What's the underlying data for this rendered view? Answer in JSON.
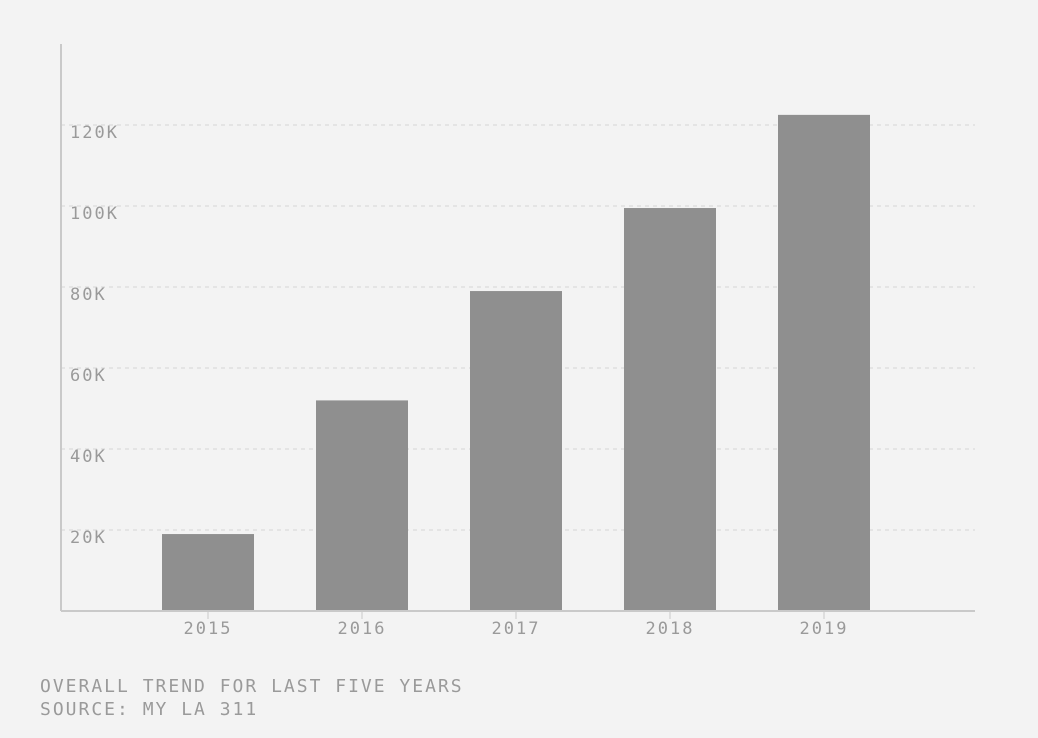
{
  "chart_data": {
    "type": "bar",
    "categories": [
      "2015",
      "2016",
      "2017",
      "2018",
      "2019"
    ],
    "values": [
      19000,
      52000,
      79000,
      99500,
      122500
    ],
    "ylim": [
      0,
      140000
    ],
    "yticks": [
      20000,
      40000,
      60000,
      80000,
      100000,
      120000
    ],
    "ytick_labels": [
      "20K",
      "40K",
      "60K",
      "80K",
      "100K",
      "120K"
    ],
    "grid": true,
    "bar_color": "#8f8f8f"
  },
  "captions": {
    "line1": "OVERALL TREND FOR LAST FIVE YEARS",
    "line2": "SOURCE: MY LA 311"
  }
}
